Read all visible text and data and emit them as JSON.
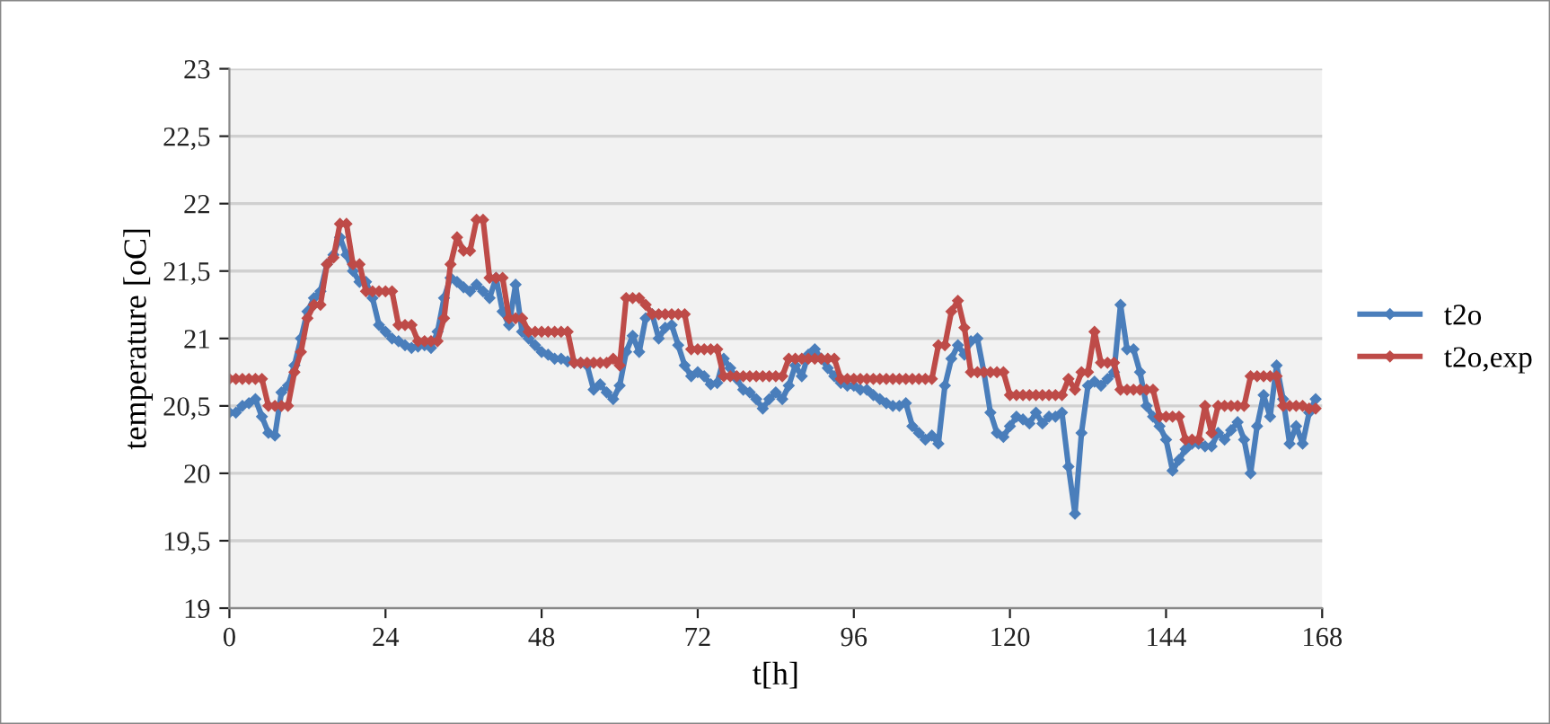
{
  "chart_data": {
    "type": "line",
    "xlabel": "t[h]",
    "ylabel": "temperature [oC]",
    "xlim": [
      0,
      168
    ],
    "xticks": [
      0,
      24,
      48,
      72,
      96,
      120,
      144,
      168
    ],
    "ylim": [
      19,
      23
    ],
    "yticks": [
      19,
      {
        "value": 19.5,
        "label": "19,5"
      },
      20,
      {
        "value": 20.5,
        "label": "20,5"
      },
      21,
      {
        "value": 21.5,
        "label": "21,5"
      },
      22,
      {
        "value": 22.5,
        "label": "22,5"
      },
      23
    ],
    "grid": "y",
    "legend": "right",
    "marker": "diamond",
    "line_style": "solid",
    "series": [
      {
        "name": "t2o",
        "color": "#4a7ebb",
        "x": [
          0,
          1,
          2,
          3,
          4,
          5,
          6,
          7,
          8,
          9,
          10,
          11,
          12,
          13,
          14,
          15,
          16,
          17,
          18,
          19,
          20,
          21,
          22,
          23,
          24,
          25,
          26,
          27,
          28,
          29,
          30,
          31,
          32,
          33,
          34,
          35,
          36,
          37,
          38,
          39,
          40,
          41,
          42,
          43,
          44,
          45,
          46,
          47,
          48,
          49,
          50,
          51,
          52,
          53,
          54,
          55,
          56,
          57,
          58,
          59,
          60,
          61,
          62,
          63,
          64,
          65,
          66,
          67,
          68,
          69,
          70,
          71,
          72,
          73,
          74,
          75,
          76,
          77,
          78,
          79,
          80,
          81,
          82,
          83,
          84,
          85,
          86,
          87,
          88,
          89,
          90,
          91,
          92,
          93,
          94,
          95,
          96,
          97,
          98,
          99,
          100,
          101,
          102,
          103,
          104,
          105,
          106,
          107,
          108,
          109,
          110,
          111,
          112,
          113,
          114,
          115,
          116,
          117,
          118,
          119,
          120,
          121,
          122,
          123,
          124,
          125,
          126,
          127,
          128,
          129,
          130,
          131,
          132,
          133,
          134,
          135,
          136,
          137,
          138,
          139,
          140,
          141,
          142,
          143,
          144,
          145,
          146,
          147,
          148,
          149,
          150,
          151,
          152,
          153,
          154,
          155,
          156,
          157,
          158,
          159,
          160,
          161,
          162,
          163,
          164,
          165,
          166,
          167
        ],
        "values": [
          20.45,
          20.45,
          20.5,
          20.52,
          20.55,
          20.42,
          20.3,
          20.28,
          20.6,
          20.65,
          20.8,
          21.0,
          21.2,
          21.3,
          21.35,
          21.55,
          21.62,
          21.75,
          21.62,
          21.5,
          21.42,
          21.42,
          21.3,
          21.1,
          21.05,
          21.0,
          20.98,
          20.95,
          20.93,
          20.94,
          20.95,
          20.93,
          21.05,
          21.3,
          21.45,
          21.42,
          21.38,
          21.35,
          21.4,
          21.35,
          21.3,
          21.45,
          21.2,
          21.1,
          21.4,
          21.05,
          21.0,
          20.95,
          20.9,
          20.88,
          20.85,
          20.85,
          20.83,
          20.82,
          20.82,
          20.8,
          20.62,
          20.66,
          20.6,
          20.55,
          20.65,
          20.9,
          21.02,
          20.9,
          21.15,
          21.18,
          21.0,
          21.08,
          21.1,
          20.95,
          20.8,
          20.72,
          20.75,
          20.72,
          20.66,
          20.67,
          20.85,
          20.78,
          20.7,
          20.62,
          20.6,
          20.55,
          20.48,
          20.55,
          20.6,
          20.55,
          20.65,
          20.8,
          20.72,
          20.88,
          20.92,
          20.85,
          20.78,
          20.72,
          20.67,
          20.65,
          20.65,
          20.62,
          20.62,
          20.58,
          20.55,
          20.52,
          20.5,
          20.5,
          20.52,
          20.35,
          20.3,
          20.25,
          20.28,
          20.22,
          20.65,
          20.85,
          20.95,
          20.88,
          20.98,
          21.0,
          20.75,
          20.45,
          20.3,
          20.27,
          20.35,
          20.42,
          20.4,
          20.37,
          20.45,
          20.37,
          20.42,
          20.42,
          20.45,
          20.05,
          19.7,
          20.3,
          20.65,
          20.68,
          20.65,
          20.7,
          20.75,
          21.25,
          20.92,
          20.92,
          20.75,
          20.5,
          20.42,
          20.35,
          20.25,
          20.02,
          20.1,
          20.18,
          20.22,
          20.22,
          20.2,
          20.2,
          20.3,
          20.25,
          20.32,
          20.38,
          20.25,
          20.0,
          20.35,
          20.58,
          20.42,
          20.8,
          20.55,
          20.22,
          20.35,
          20.22,
          20.45,
          20.55
        ]
      },
      {
        "name": "t2o,exp",
        "color": "#be4b48",
        "x": [
          0,
          1,
          2,
          3,
          4,
          5,
          6,
          7,
          8,
          9,
          10,
          11,
          12,
          13,
          14,
          15,
          16,
          17,
          18,
          19,
          20,
          21,
          22,
          23,
          24,
          25,
          26,
          27,
          28,
          29,
          30,
          31,
          32,
          33,
          34,
          35,
          36,
          37,
          38,
          39,
          40,
          41,
          42,
          43,
          44,
          45,
          46,
          47,
          48,
          49,
          50,
          51,
          52,
          53,
          54,
          55,
          56,
          57,
          58,
          59,
          60,
          61,
          62,
          63,
          64,
          65,
          66,
          67,
          68,
          69,
          70,
          71,
          72,
          73,
          74,
          75,
          76,
          77,
          78,
          79,
          80,
          81,
          82,
          83,
          84,
          85,
          86,
          87,
          88,
          89,
          90,
          91,
          92,
          93,
          94,
          95,
          96,
          97,
          98,
          99,
          100,
          101,
          102,
          103,
          104,
          105,
          106,
          107,
          108,
          109,
          110,
          111,
          112,
          113,
          114,
          115,
          116,
          117,
          118,
          119,
          120,
          121,
          122,
          123,
          124,
          125,
          126,
          127,
          128,
          129,
          130,
          131,
          132,
          133,
          134,
          135,
          136,
          137,
          138,
          139,
          140,
          141,
          142,
          143,
          144,
          145,
          146,
          147,
          148,
          149,
          150,
          151,
          152,
          153,
          154,
          155,
          156,
          157,
          158,
          159,
          160,
          161,
          162,
          163,
          164,
          165,
          166,
          167
        ],
        "values": [
          20.7,
          20.7,
          20.7,
          20.7,
          20.7,
          20.7,
          20.5,
          20.5,
          20.5,
          20.5,
          20.75,
          20.9,
          21.15,
          21.25,
          21.25,
          21.55,
          21.6,
          21.85,
          21.85,
          21.55,
          21.55,
          21.35,
          21.35,
          21.35,
          21.35,
          21.35,
          21.1,
          21.1,
          21.1,
          20.98,
          20.98,
          20.98,
          20.98,
          21.15,
          21.55,
          21.75,
          21.65,
          21.65,
          21.88,
          21.88,
          21.45,
          21.45,
          21.45,
          21.15,
          21.15,
          21.15,
          21.05,
          21.05,
          21.05,
          21.05,
          21.05,
          21.05,
          21.05,
          20.82,
          20.82,
          20.82,
          20.82,
          20.82,
          20.82,
          20.85,
          20.8,
          21.3,
          21.3,
          21.3,
          21.25,
          21.18,
          21.18,
          21.18,
          21.18,
          21.18,
          21.18,
          20.92,
          20.92,
          20.92,
          20.92,
          20.92,
          20.72,
          20.72,
          20.72,
          20.72,
          20.72,
          20.72,
          20.72,
          20.72,
          20.72,
          20.72,
          20.85,
          20.85,
          20.85,
          20.85,
          20.85,
          20.85,
          20.85,
          20.85,
          20.7,
          20.7,
          20.7,
          20.7,
          20.7,
          20.7,
          20.7,
          20.7,
          20.7,
          20.7,
          20.7,
          20.7,
          20.7,
          20.7,
          20.7,
          20.95,
          20.95,
          21.2,
          21.28,
          21.08,
          20.75,
          20.75,
          20.75,
          20.75,
          20.75,
          20.75,
          20.58,
          20.58,
          20.58,
          20.58,
          20.58,
          20.58,
          20.58,
          20.58,
          20.58,
          20.7,
          20.62,
          20.75,
          20.75,
          21.05,
          20.82,
          20.82,
          20.82,
          20.62,
          20.62,
          20.62,
          20.62,
          20.62,
          20.62,
          20.42,
          20.42,
          20.42,
          20.42,
          20.25,
          20.25,
          20.25,
          20.5,
          20.3,
          20.5,
          20.5,
          20.5,
          20.5,
          20.5,
          20.72,
          20.72,
          20.72,
          20.72,
          20.72,
          20.5,
          20.5,
          20.5,
          20.5,
          20.48,
          20.48
        ]
      }
    ]
  }
}
